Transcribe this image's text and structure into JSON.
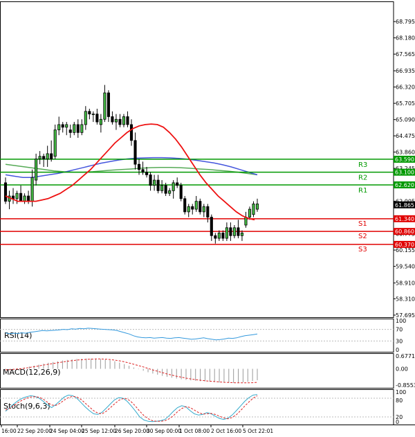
{
  "chart_data": {
    "type": "candlestick",
    "instrument_note": "",
    "main": {
      "ylim": [
        57.695,
        69.35
      ],
      "y_ticks": [
        "68.795",
        "68.180",
        "67.565",
        "66.935",
        "66.320",
        "65.705",
        "65.090",
        "64.475",
        "63.860",
        "63.245",
        "62.620",
        "62.005",
        "61.390",
        "60.775",
        "60.155",
        "59.540",
        "58.910",
        "58.310",
        "57.695"
      ],
      "levels": [
        {
          "name": "R3",
          "value": 63.59,
          "label": "63.590",
          "color": "#009900"
        },
        {
          "name": "R2",
          "value": 63.1,
          "label": "63.100",
          "color": "#009900"
        },
        {
          "name": "R1",
          "value": 62.62,
          "label": "62.620",
          "color": "#009900"
        },
        {
          "name": "S1",
          "value": 61.34,
          "label": "61.340",
          "color": "#e00000"
        },
        {
          "name": "S2",
          "value": 60.86,
          "label": "60.860",
          "color": "#e00000"
        },
        {
          "name": "S3",
          "value": 60.37,
          "label": "60.370",
          "color": "#e00000"
        }
      ],
      "current_price": {
        "value": 61.865,
        "label": "61.865"
      },
      "candles": [
        {
          "o": 62.7,
          "h": 62.9,
          "l": 61.9,
          "c": 62.0
        },
        {
          "o": 62.0,
          "h": 62.4,
          "l": 61.7,
          "c": 62.2
        },
        {
          "o": 62.2,
          "h": 62.5,
          "l": 61.9,
          "c": 62.1
        },
        {
          "o": 62.1,
          "h": 62.4,
          "l": 61.9,
          "c": 62.3
        },
        {
          "o": 62.3,
          "h": 62.6,
          "l": 62.0,
          "c": 62.0
        },
        {
          "o": 62.0,
          "h": 62.3,
          "l": 61.9,
          "c": 62.2
        },
        {
          "o": 62.2,
          "h": 62.4,
          "l": 61.9,
          "c": 62.0
        },
        {
          "o": 62.0,
          "h": 63.2,
          "l": 61.8,
          "c": 62.9
        },
        {
          "o": 62.8,
          "h": 63.8,
          "l": 62.6,
          "c": 63.6
        },
        {
          "o": 63.6,
          "h": 63.9,
          "l": 63.4,
          "c": 63.7
        },
        {
          "o": 63.7,
          "h": 63.8,
          "l": 63.3,
          "c": 63.6
        },
        {
          "o": 63.6,
          "h": 64.1,
          "l": 63.3,
          "c": 63.8
        },
        {
          "o": 63.8,
          "h": 64.3,
          "l": 63.5,
          "c": 63.6
        },
        {
          "o": 63.7,
          "h": 64.9,
          "l": 63.6,
          "c": 64.7
        },
        {
          "o": 64.7,
          "h": 65.2,
          "l": 64.5,
          "c": 64.9
        },
        {
          "o": 64.9,
          "h": 65.0,
          "l": 64.6,
          "c": 64.8
        },
        {
          "o": 64.8,
          "h": 65.0,
          "l": 64.5,
          "c": 64.9
        },
        {
          "o": 64.7,
          "h": 64.9,
          "l": 64.4,
          "c": 64.6
        },
        {
          "o": 64.6,
          "h": 65.0,
          "l": 64.5,
          "c": 64.9
        },
        {
          "o": 64.9,
          "h": 65.1,
          "l": 64.4,
          "c": 64.6
        },
        {
          "o": 64.6,
          "h": 65.1,
          "l": 64.5,
          "c": 64.9
        },
        {
          "o": 64.9,
          "h": 65.6,
          "l": 64.7,
          "c": 65.4
        },
        {
          "o": 65.4,
          "h": 65.5,
          "l": 65.1,
          "c": 65.3
        },
        {
          "o": 65.3,
          "h": 65.4,
          "l": 65.0,
          "c": 65.3
        },
        {
          "o": 65.3,
          "h": 65.5,
          "l": 64.9,
          "c": 65.0
        },
        {
          "o": 64.9,
          "h": 65.3,
          "l": 64.6,
          "c": 65.1
        },
        {
          "o": 65.1,
          "h": 66.4,
          "l": 65.0,
          "c": 66.1
        },
        {
          "o": 66.1,
          "h": 66.2,
          "l": 65.0,
          "c": 65.2
        },
        {
          "o": 65.2,
          "h": 65.4,
          "l": 64.9,
          "c": 65.0
        },
        {
          "o": 65.0,
          "h": 65.3,
          "l": 64.7,
          "c": 65.1
        },
        {
          "o": 65.1,
          "h": 65.3,
          "l": 64.8,
          "c": 64.9
        },
        {
          "o": 64.9,
          "h": 65.3,
          "l": 64.8,
          "c": 65.2
        },
        {
          "o": 65.2,
          "h": 65.4,
          "l": 64.8,
          "c": 64.9
        },
        {
          "o": 64.9,
          "h": 65.1,
          "l": 64.1,
          "c": 64.3
        },
        {
          "o": 64.3,
          "h": 64.6,
          "l": 63.2,
          "c": 63.4
        },
        {
          "o": 63.4,
          "h": 63.6,
          "l": 63.0,
          "c": 63.2
        },
        {
          "o": 63.2,
          "h": 63.5,
          "l": 63.0,
          "c": 63.1
        },
        {
          "o": 63.1,
          "h": 63.3,
          "l": 62.9,
          "c": 63.0
        },
        {
          "o": 63.0,
          "h": 63.1,
          "l": 62.4,
          "c": 62.6
        },
        {
          "o": 62.6,
          "h": 63.0,
          "l": 62.4,
          "c": 62.8
        },
        {
          "o": 62.8,
          "h": 63.0,
          "l": 62.3,
          "c": 62.4
        },
        {
          "o": 62.4,
          "h": 62.8,
          "l": 62.3,
          "c": 62.6
        },
        {
          "o": 62.6,
          "h": 62.7,
          "l": 62.2,
          "c": 62.3
        },
        {
          "o": 62.3,
          "h": 62.5,
          "l": 62.2,
          "c": 62.4
        },
        {
          "o": 62.4,
          "h": 62.8,
          "l": 62.1,
          "c": 62.7
        },
        {
          "o": 62.7,
          "h": 62.9,
          "l": 62.5,
          "c": 62.6
        },
        {
          "o": 62.6,
          "h": 62.7,
          "l": 62.0,
          "c": 62.1
        },
        {
          "o": 62.1,
          "h": 62.2,
          "l": 61.5,
          "c": 61.6
        },
        {
          "o": 61.6,
          "h": 61.9,
          "l": 61.4,
          "c": 61.8
        },
        {
          "o": 61.8,
          "h": 61.9,
          "l": 61.5,
          "c": 61.7
        },
        {
          "o": 61.7,
          "h": 62.2,
          "l": 61.6,
          "c": 62.0
        },
        {
          "o": 62.0,
          "h": 62.1,
          "l": 61.5,
          "c": 61.6
        },
        {
          "o": 61.6,
          "h": 61.9,
          "l": 61.4,
          "c": 61.8
        },
        {
          "o": 61.8,
          "h": 61.9,
          "l": 61.2,
          "c": 61.4
        },
        {
          "o": 61.4,
          "h": 61.5,
          "l": 60.5,
          "c": 60.7
        },
        {
          "o": 60.7,
          "h": 60.8,
          "l": 60.4,
          "c": 60.6
        },
        {
          "o": 60.6,
          "h": 60.9,
          "l": 60.5,
          "c": 60.8
        },
        {
          "o": 60.8,
          "h": 60.9,
          "l": 60.5,
          "c": 60.6
        },
        {
          "o": 60.6,
          "h": 61.2,
          "l": 60.5,
          "c": 61.0
        },
        {
          "o": 61.0,
          "h": 61.2,
          "l": 60.5,
          "c": 60.7
        },
        {
          "o": 60.7,
          "h": 61.1,
          "l": 60.6,
          "c": 61.0
        },
        {
          "o": 61.0,
          "h": 61.3,
          "l": 60.6,
          "c": 60.7
        },
        {
          "o": 60.7,
          "h": 60.9,
          "l": 60.5,
          "c": 60.8
        },
        {
          "o": 61.1,
          "h": 61.6,
          "l": 61.0,
          "c": 61.4
        },
        {
          "o": 61.4,
          "h": 61.8,
          "l": 61.3,
          "c": 61.7
        },
        {
          "o": 61.5,
          "h": 62.0,
          "l": 61.4,
          "c": 61.9
        },
        {
          "o": 61.7,
          "h": 62.1,
          "l": 61.6,
          "c": 61.9
        }
      ],
      "ma_red": [
        62.2,
        62.1,
        62.0,
        62.0,
        62.0,
        62.0,
        62.05,
        62.1,
        62.2,
        62.3,
        62.45,
        62.6,
        62.8,
        63.0,
        63.2,
        63.45,
        63.7,
        63.95,
        64.2,
        64.4,
        64.6,
        64.75,
        64.85,
        64.9,
        64.92,
        64.9,
        64.8,
        64.6,
        64.35,
        64.05,
        63.7,
        63.35,
        63.0,
        62.7,
        62.45,
        62.2,
        62.0,
        61.8,
        61.6,
        61.45,
        61.35,
        61.3
      ],
      "ma_blue": [
        63.0,
        62.95,
        62.9,
        62.9,
        62.95,
        63.0,
        63.05,
        63.12,
        63.2,
        63.28,
        63.36,
        63.44,
        63.5,
        63.56,
        63.6,
        63.63,
        63.64,
        63.65,
        63.65,
        63.64,
        63.62,
        63.59,
        63.55,
        63.5,
        63.45,
        63.38,
        63.3,
        63.2,
        63.1,
        63.0
      ],
      "ma_green": [
        63.4,
        63.35,
        63.3,
        63.25,
        63.2,
        63.15,
        63.12,
        63.1,
        63.1,
        63.12,
        63.15,
        63.18,
        63.2,
        63.22,
        63.25,
        63.27,
        63.28,
        63.28,
        63.27,
        63.25,
        63.22,
        63.2,
        63.17,
        63.14,
        63.1,
        63.05,
        63.0
      ],
      "x_labels": [
        "16:00",
        "22 Sep 20:00",
        "24 Sep 04:00",
        "25 Sep 12:00",
        "26 Sep 20:00",
        "30 Sep 00:00",
        "1 Oct 08:00",
        "2 Oct 16:00",
        "5 Oct 22:01"
      ]
    },
    "rsi": {
      "title": "RSI(14)",
      "ylim": [
        0,
        100
      ],
      "y_ticks": [
        "100",
        "70",
        "30",
        "0"
      ],
      "levels": [
        70,
        30
      ],
      "values": [
        58,
        55,
        57,
        56,
        58,
        57,
        60,
        62,
        64,
        66,
        65,
        66,
        67,
        68,
        70,
        69,
        72,
        71,
        73,
        72,
        74,
        73,
        72,
        71,
        70,
        69,
        68,
        66,
        62,
        58,
        54,
        48,
        44,
        42,
        41,
        42,
        40,
        41,
        42,
        40,
        39,
        41,
        42,
        40,
        38,
        36,
        37,
        39,
        41,
        38,
        36,
        34,
        35,
        37,
        40,
        39,
        41,
        45,
        48,
        50,
        52,
        54
      ]
    },
    "macd": {
      "title": "MACD(12,26,9)",
      "ylim": [
        -0.8553,
        0.6771
      ],
      "y_ticks": [
        "0.6771",
        "0.00",
        "-0.8553"
      ],
      "hist": [
        -0.05,
        -0.03,
        0.0,
        0.03,
        0.07,
        0.12,
        0.17,
        0.22,
        0.27,
        0.32,
        0.36,
        0.4,
        0.44,
        0.47,
        0.5,
        0.52,
        0.53,
        0.54,
        0.54,
        0.53,
        0.52,
        0.49,
        0.45,
        0.4,
        0.33,
        0.25,
        0.16,
        0.07,
        -0.02,
        -0.1,
        -0.18,
        -0.25,
        -0.31,
        -0.37,
        -0.42,
        -0.47,
        -0.51,
        -0.55,
        -0.58,
        -0.61,
        -0.63,
        -0.65,
        -0.66,
        -0.68,
        -0.7,
        -0.72,
        -0.73,
        -0.74,
        -0.74,
        -0.73,
        -0.71,
        -0.68,
        -0.64,
        -0.6
      ],
      "signal": [
        -0.05,
        -0.04,
        -0.02,
        0.0,
        0.03,
        0.07,
        0.11,
        0.15,
        0.2,
        0.24,
        0.28,
        0.32,
        0.36,
        0.4,
        0.43,
        0.46,
        0.48,
        0.5,
        0.51,
        0.52,
        0.52,
        0.51,
        0.49,
        0.46,
        0.42,
        0.37,
        0.31,
        0.24,
        0.17,
        0.1,
        0.02,
        -0.06,
        -0.13,
        -0.2,
        -0.27,
        -0.33,
        -0.39,
        -0.44,
        -0.49,
        -0.53,
        -0.57,
        -0.6,
        -0.63,
        -0.65,
        -0.67,
        -0.69,
        -0.71,
        -0.72,
        -0.73,
        -0.74,
        -0.74,
        -0.74,
        -0.73,
        -0.71
      ]
    },
    "stoch": {
      "title": "Stoch(9,6,3)",
      "ylim": [
        0,
        100
      ],
      "y_ticks": [
        "80",
        "20"
      ],
      "levels": [
        80,
        20
      ],
      "k": [
        38,
        50,
        62,
        72,
        80,
        85,
        88,
        86,
        80,
        70,
        58,
        50,
        60,
        72,
        84,
        90,
        88,
        80,
        66,
        52,
        40,
        30,
        28,
        35,
        48,
        62,
        75,
        82,
        80,
        70,
        55,
        38,
        20,
        10,
        6,
        5,
        6,
        8,
        12,
        24,
        38,
        50,
        56,
        52,
        40,
        30,
        26,
        28,
        34,
        30,
        22,
        15,
        12,
        16,
        26,
        40,
        55,
        70,
        82,
        90,
        92
      ],
      "d": [
        42,
        48,
        57,
        66,
        74,
        80,
        84,
        85,
        83,
        77,
        67,
        58,
        57,
        64,
        74,
        82,
        86,
        84,
        76,
        64,
        52,
        40,
        32,
        30,
        38,
        50,
        62,
        73,
        79,
        78,
        68,
        54,
        38,
        24,
        14,
        8,
        6,
        6,
        8,
        14,
        24,
        37,
        47,
        53,
        50,
        42,
        34,
        29,
        30,
        31,
        28,
        22,
        17,
        14,
        18,
        27,
        40,
        55,
        68,
        80,
        88
      ]
    }
  }
}
